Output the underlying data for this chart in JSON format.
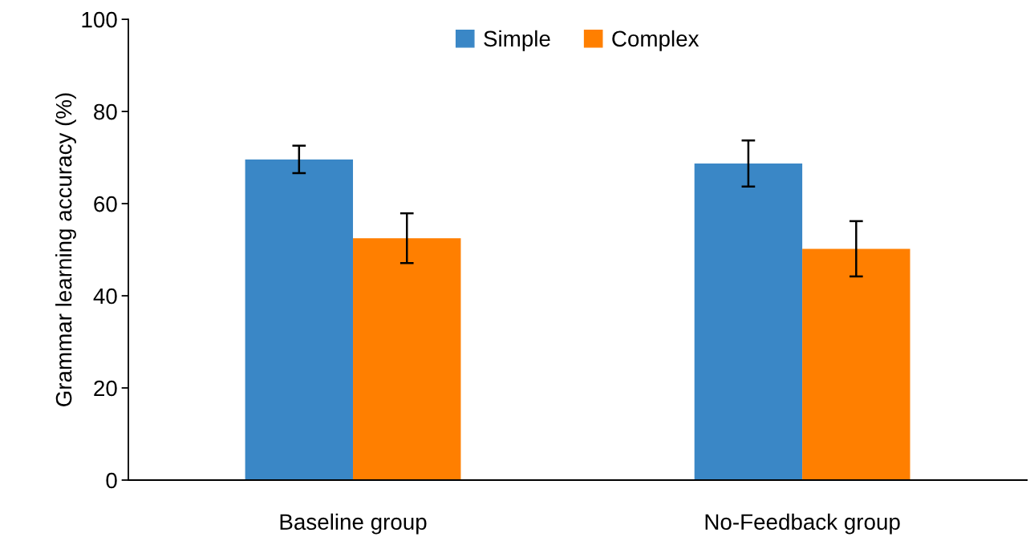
{
  "chart_data": {
    "type": "bar",
    "ylabel": "Grammar learning accuracy (%)",
    "categories": [
      "Baseline group",
      "No-Feedback group"
    ],
    "series": [
      {
        "name": "Simple",
        "color": "#3a87c6",
        "values": [
          69.6,
          68.7
        ],
        "errors": [
          3.0,
          5.0
        ]
      },
      {
        "name": "Complex",
        "color": "#ff7f00",
        "values": [
          52.5,
          50.2
        ],
        "errors": [
          5.4,
          6.0
        ]
      }
    ],
    "ylim": [
      0,
      100
    ],
    "yticks": [
      0,
      20,
      40,
      60,
      80,
      100
    ],
    "grid": false,
    "legend": "top"
  }
}
